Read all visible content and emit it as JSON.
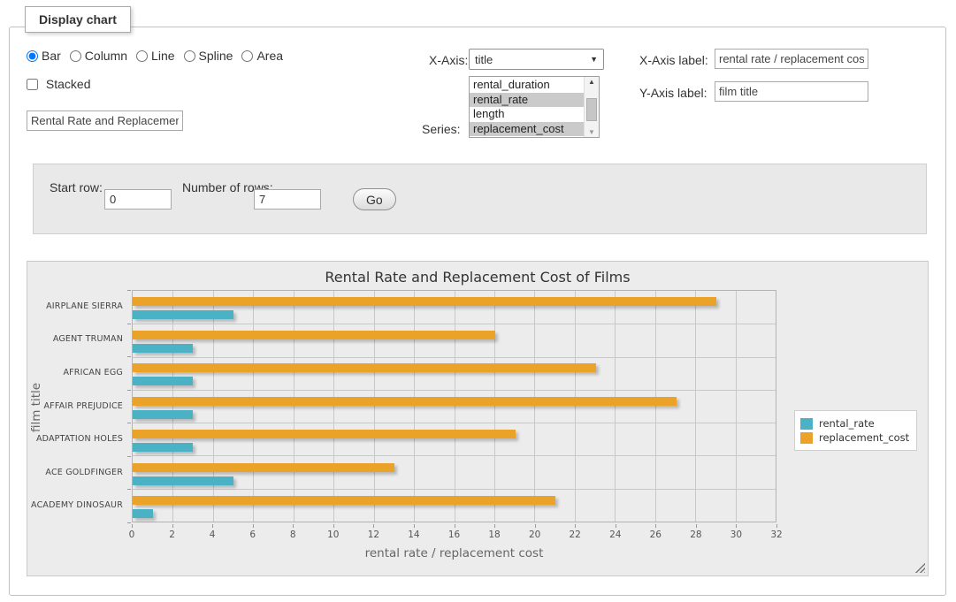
{
  "panel": {
    "legend_title": "Display chart"
  },
  "chart_type_options": [
    {
      "label": "Bar",
      "selected": true
    },
    {
      "label": "Column",
      "selected": false
    },
    {
      "label": "Line",
      "selected": false
    },
    {
      "label": "Spline",
      "selected": false
    },
    {
      "label": "Area",
      "selected": false
    }
  ],
  "stacked": {
    "label": "Stacked",
    "checked": false
  },
  "title_input": {
    "value": "Rental Rate and Replacement Cost of Films"
  },
  "xaxis_select": {
    "label": "X-Axis:",
    "selected": "title"
  },
  "series_select": {
    "label": "Series:",
    "options": [
      {
        "label": "rental_duration",
        "selected": false
      },
      {
        "label": "rental_rate",
        "selected": true
      },
      {
        "label": "length",
        "selected": false
      },
      {
        "label": "replacement_cost",
        "selected": true
      }
    ]
  },
  "xaxis_label_field": {
    "label": "X-Axis label:",
    "value": "rental rate / replacement cost"
  },
  "yaxis_label_field": {
    "label": "Y-Axis label:",
    "value": "film title"
  },
  "rows_panel": {
    "start_row_label": "Start row:",
    "start_row_value": "0",
    "num_rows_label": "Number of rows:",
    "num_rows_value": "7",
    "go_label": "Go"
  },
  "chart_data": {
    "type": "bar",
    "orientation": "horizontal",
    "title": "Rental Rate and Replacement Cost of Films",
    "xlabel": "rental rate / replacement cost",
    "ylabel": "film title",
    "xlim": [
      0,
      32
    ],
    "xtick_step": 2,
    "grid": true,
    "legend_position": "right",
    "categories": [
      "AIRPLANE SIERRA",
      "AGENT TRUMAN",
      "AFRICAN EGG",
      "AFFAIR PREJUDICE",
      "ADAPTATION HOLES",
      "ACE GOLDFINGER",
      "ACADEMY DINOSAUR"
    ],
    "series": [
      {
        "name": "rental_rate",
        "color": "#4bb2c5",
        "values": [
          4.99,
          2.99,
          2.99,
          2.99,
          2.99,
          4.99,
          0.99
        ]
      },
      {
        "name": "replacement_cost",
        "color": "#eaa228",
        "values": [
          28.99,
          17.99,
          22.99,
          26.99,
          18.99,
          12.99,
          20.99
        ]
      }
    ],
    "band_order_top_to_bottom": [
      "replacement_cost",
      "rental_rate"
    ]
  }
}
